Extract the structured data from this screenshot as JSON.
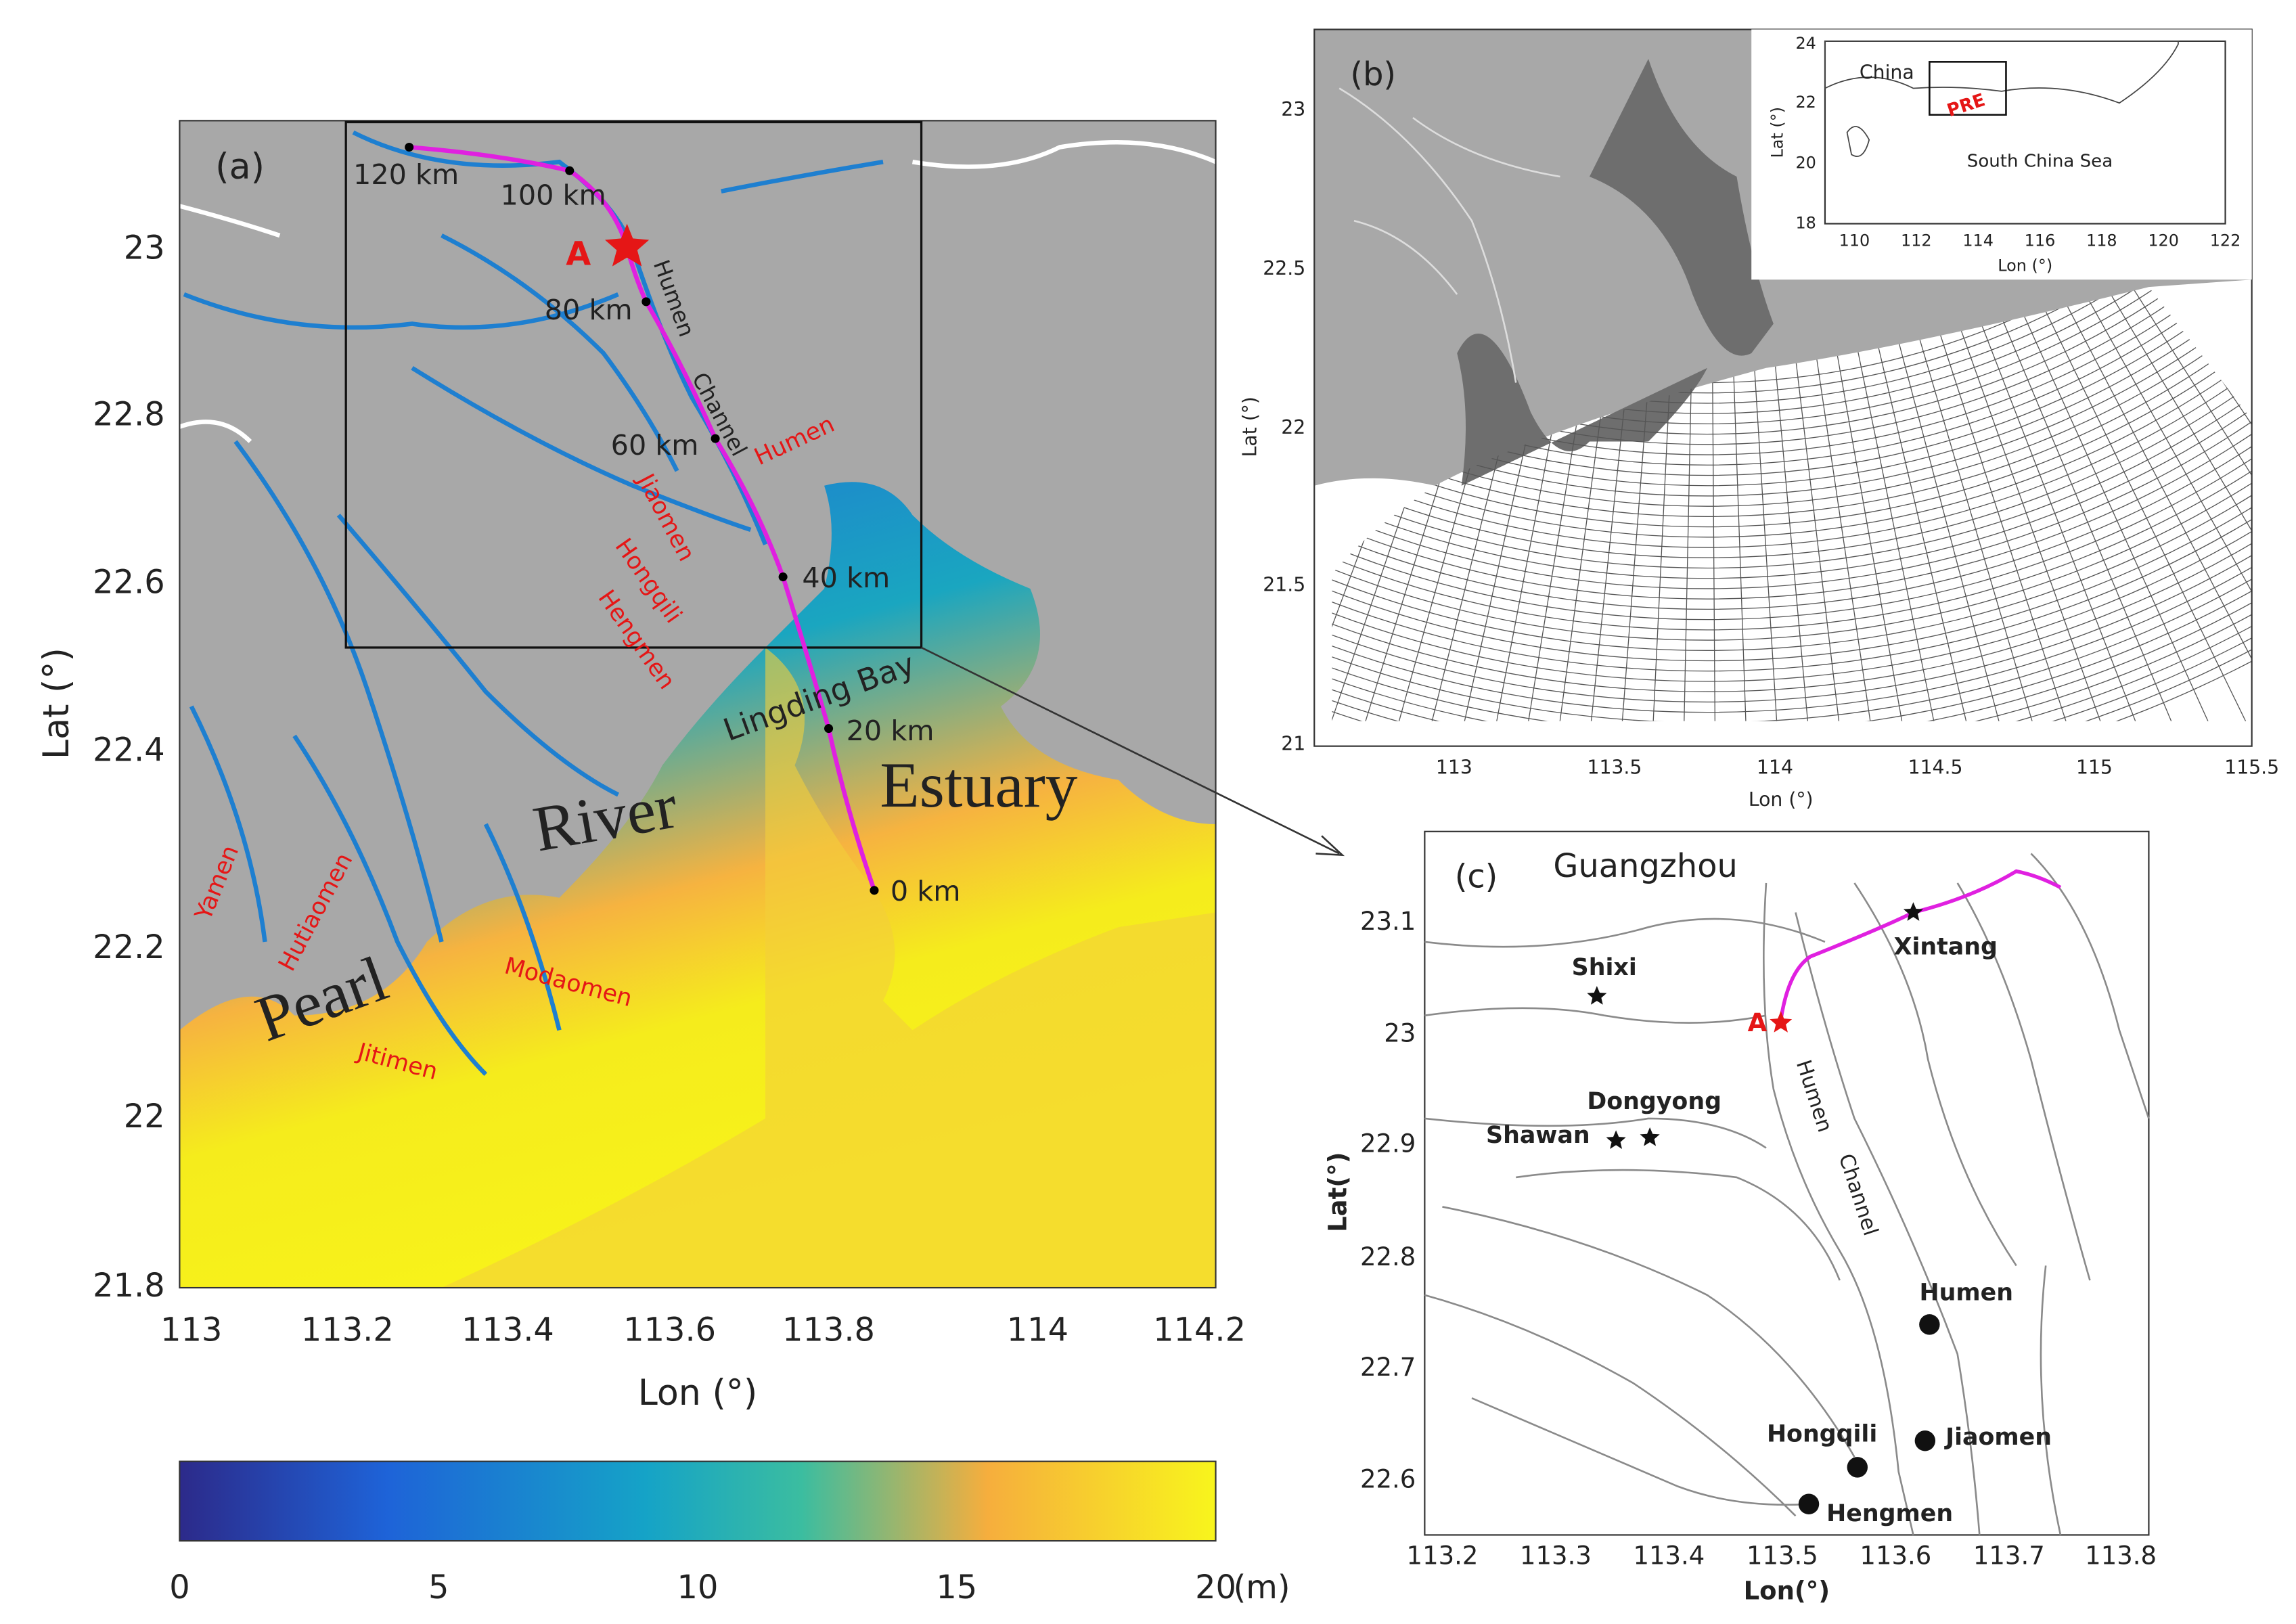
{
  "panel_a": {
    "label": "(a)",
    "y_ticks": [
      "23",
      "22.8",
      "22.6",
      "22.4",
      "22.2",
      "22",
      "21.8"
    ],
    "x_ticks": [
      "113",
      "113.2",
      "113.4",
      "113.6",
      "113.8",
      "114",
      "114.2"
    ],
    "x_axis": "Lon (°)",
    "y_axis": "Lat (°)",
    "distance_labels": [
      "120 km",
      "100 km",
      "80 km",
      "60 km",
      "40 km",
      "20 km",
      "0 km"
    ],
    "point": "A",
    "channel_labels": [
      "Humen",
      "Channel"
    ],
    "outlets": [
      "Humen",
      "Jiaomen",
      "Hongqili",
      "Hengmen",
      "Modaomen",
      "Jitimen",
      "Hutiaomen",
      "Yamen"
    ],
    "bay": "Lingding Bay",
    "region_words": [
      "Pearl",
      "River",
      "Estuary"
    ]
  },
  "colorbar": {
    "ticks": [
      "0",
      "5",
      "10",
      "15",
      "20"
    ],
    "unit": "(m)"
  },
  "panel_b": {
    "label": "(b)",
    "y_ticks": [
      "23",
      "22.5",
      "22",
      "21.5",
      "21"
    ],
    "x_ticks": [
      "113",
      "113.5",
      "114",
      "114.5",
      "115",
      "115.5"
    ],
    "x_axis": "Lon (°)",
    "y_axis": "Lat (°)",
    "inset": {
      "y_ticks": [
        "24",
        "22",
        "20",
        "18"
      ],
      "x_ticks": [
        "110",
        "112",
        "114",
        "116",
        "118",
        "120",
        "122"
      ],
      "x_axis": "Lon (°)",
      "y_axis": "Lat (°)",
      "labels": [
        "China",
        "PRE",
        "South China Sea"
      ]
    }
  },
  "panel_c": {
    "label": "(c)",
    "y_ticks": [
      "23.1",
      "23",
      "22.9",
      "22.8",
      "22.7",
      "22.6"
    ],
    "x_ticks": [
      "113.2",
      "113.3",
      "113.4",
      "113.5",
      "113.6",
      "113.7",
      "113.8"
    ],
    "x_axis": "Lon(°)",
    "y_axis": "Lat(°)",
    "city": "Guangzhou",
    "point": "A",
    "stations": [
      "Shixi",
      "Xintang",
      "Dongyong",
      "Shawan"
    ],
    "channel_labels": [
      "Humen",
      "Channel"
    ],
    "outlets": [
      "Humen",
      "Jiaomen",
      "Hongqili",
      "Hengmen"
    ]
  }
}
